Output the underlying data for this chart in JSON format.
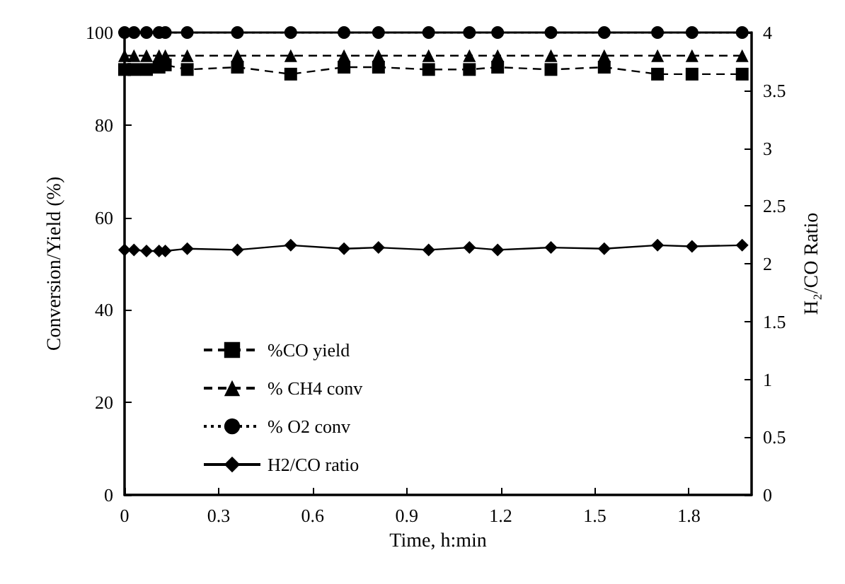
{
  "chart_data": {
    "type": "line",
    "xlabel": "Time, h:min",
    "ylabel": "Conversion/Yield (%)",
    "y2label": "H₂/CO Ratio",
    "x": [
      0,
      0.03,
      0.07,
      0.11,
      0.13,
      0.2,
      0.36,
      0.53,
      0.7,
      0.81,
      0.97,
      1.1,
      1.19,
      1.36,
      1.53,
      1.7,
      1.81,
      1.97
    ],
    "series": [
      {
        "name": "%CO yield",
        "color": "#000000",
        "marker": "square",
        "line_style": "dashed",
        "values": [
          92,
          92,
          92,
          92.5,
          93,
          92,
          92.5,
          91,
          92.5,
          92.5,
          92,
          92,
          92.5,
          92,
          92.5,
          91,
          91,
          91
        ]
      },
      {
        "name": "% CH4 conv",
        "color": "#000000",
        "marker": "triangle",
        "line_style": "dashed",
        "values": [
          95,
          95,
          95,
          95,
          95,
          95,
          95,
          95,
          95,
          95,
          95,
          95,
          95,
          95,
          95,
          95,
          95,
          95
        ]
      },
      {
        "name": "% O2 conv",
        "color": "#000000",
        "marker": "circle",
        "line_style": "dotted",
        "values": [
          100,
          100,
          100,
          100,
          100,
          100,
          100,
          100,
          100,
          100,
          100,
          100,
          100,
          100,
          100,
          100,
          100,
          100
        ]
      },
      {
        "name": "H2/CO ratio",
        "color": "#000000",
        "marker": "diamond",
        "line_style": "solid",
        "axis": "y2",
        "values": [
          2.12,
          2.12,
          2.11,
          2.11,
          2.11,
          2.13,
          2.12,
          2.16,
          2.13,
          2.14,
          2.12,
          2.14,
          2.12,
          2.14,
          2.13,
          2.16,
          2.15,
          2.16
        ]
      }
    ],
    "xlim": [
      0,
      2
    ],
    "xticks": [
      0,
      0.3,
      0.6,
      0.9,
      1.2,
      1.5,
      1.8
    ],
    "ylim": [
      0,
      100
    ],
    "yticks": [
      0,
      20,
      40,
      60,
      80,
      100
    ],
    "y2lim": [
      0,
      4
    ],
    "y2ticks": [
      0,
      0.5,
      1,
      1.5,
      2,
      2.5,
      3,
      3.5,
      4
    ],
    "grid": false,
    "legend": "left"
  }
}
